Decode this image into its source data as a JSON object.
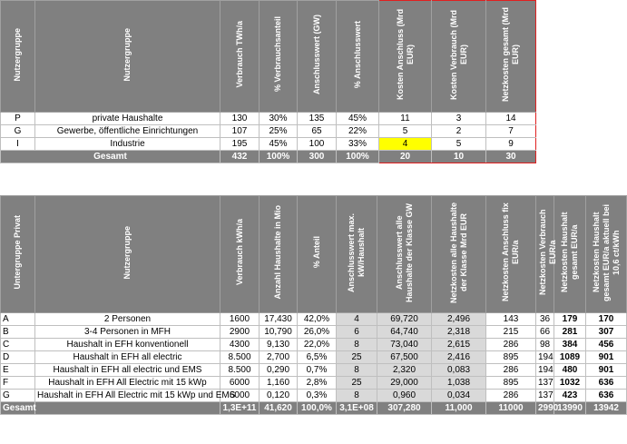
{
  "table1": {
    "headers": [
      "Nutzergruppe",
      "Nutzergruppe",
      "Verbrauch TWh/a",
      "% Verbrauchsanteil",
      "Anschlusswert (GW)",
      "% Anschlusswert",
      "Kosten Anschluss (Mrd EUR)",
      "Kosten Verbrauch (Mrd EUR)",
      "Netzkosten gesamt (Mrd EUR)"
    ],
    "rows": [
      [
        "P",
        "private Haushalte",
        "130",
        "30%",
        "135",
        "45%",
        "11",
        "3",
        "14"
      ],
      [
        "G",
        "Gewerbe, öffentliche Einrichtungen",
        "107",
        "25%",
        "65",
        "22%",
        "5",
        "2",
        "7"
      ],
      [
        "I",
        "Industrie",
        "195",
        "45%",
        "100",
        "33%",
        "4",
        "5",
        "9"
      ]
    ],
    "total": {
      "label": "Gesamt",
      "values": [
        "432",
        "100%",
        "300",
        "100%",
        "20",
        "10",
        "30"
      ]
    }
  },
  "table2": {
    "headers": [
      "Untergruppe Privat",
      "Nutzergruppe",
      "Verbrauch kWh/a",
      "Anzahl Haushalte in Mio",
      "% Anteil",
      "Anschlusswert max. kW/Haushalt",
      "Anschlusswert alle Haushalte der Klasse GW",
      "Netzkosten alle Haushalte der Klasse Mrd EUR",
      "Netzkosten Anschluss fix EUR/a",
      "Netzkosten Verbrauch EUR/a",
      "Netzkosten Haushalt gesamt EUR/a",
      "Netzkosten Haushalt gesamt EUR/a aktuell bei 10,6 ct/kWh"
    ],
    "rows": [
      [
        "A",
        "2 Personen",
        "1600",
        "17,430",
        "42,0%",
        "4",
        "69,720",
        "2,496",
        "143",
        "36",
        "179",
        "170"
      ],
      [
        "B",
        "3-4 Personen in MFH",
        "2900",
        "10,790",
        "26,0%",
        "6",
        "64,740",
        "2,318",
        "215",
        "66",
        "281",
        "307"
      ],
      [
        "C",
        "Haushalt in EFH konventionell",
        "4300",
        "9,130",
        "22,0%",
        "8",
        "73,040",
        "2,615",
        "286",
        "98",
        "384",
        "456"
      ],
      [
        "D",
        "Haushalt in EFH all electric",
        "8.500",
        "2,700",
        "6,5%",
        "25",
        "67,500",
        "2,416",
        "895",
        "194",
        "1089",
        "901"
      ],
      [
        "E",
        "Haushalt in EFH all electric und EMS",
        "8.500",
        "0,290",
        "0,7%",
        "8",
        "2,320",
        "0,083",
        "286",
        "194",
        "480",
        "901"
      ],
      [
        "F",
        "Haushalt in EFH All Electric mit 15 kWp",
        "6000",
        "1,160",
        "2,8%",
        "25",
        "29,000",
        "1,038",
        "895",
        "137",
        "1032",
        "636"
      ],
      [
        "G",
        "Haushalt in EFH All Electric mit 15 kWp und EMS",
        "6000",
        "0,120",
        "0,3%",
        "8",
        "0,960",
        "0,034",
        "286",
        "137",
        "423",
        "636"
      ]
    ],
    "total": {
      "label": "Gesamt",
      "values": [
        "1,3E+11",
        "41,620",
        "100,0%",
        "3,1E+08",
        "307,280",
        "11,000",
        "11000",
        "2990",
        "13990",
        "13942"
      ]
    }
  }
}
